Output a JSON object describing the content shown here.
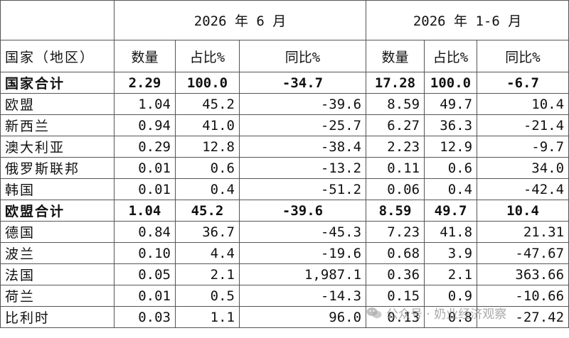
{
  "header": {
    "period_month": "2026 年 6 月",
    "period_ytd": "2026 年 1-6 月",
    "col_region": "国家（地区）",
    "col_qty": "数量",
    "col_share": "占比%",
    "col_yoy": "同比%"
  },
  "rows": [
    {
      "name": "国家合计",
      "qty": "2.29",
      "share": "100.0",
      "yoy": "-34.7",
      "ytd_qty": "17.28",
      "ytd_share": "100.0",
      "ytd_yoy": "-6.7"
    },
    {
      "name": "欧盟",
      "qty": "1.04",
      "share": "45.2",
      "yoy": "-39.6",
      "ytd_qty": "8.59",
      "ytd_share": "49.7",
      "ytd_yoy": "10.4"
    },
    {
      "name": "新西兰",
      "qty": "0.94",
      "share": "41.0",
      "yoy": "-25.7",
      "ytd_qty": "6.27",
      "ytd_share": "36.3",
      "ytd_yoy": "-21.4"
    },
    {
      "name": "澳大利亚",
      "qty": "0.29",
      "share": "12.8",
      "yoy": "-38.4",
      "ytd_qty": "2.23",
      "ytd_share": "12.9",
      "ytd_yoy": "-9.7"
    },
    {
      "name": "俄罗斯联邦",
      "qty": "0.01",
      "share": "0.6",
      "yoy": "-13.2",
      "ytd_qty": "0.11",
      "ytd_share": "0.6",
      "ytd_yoy": "34.0"
    },
    {
      "name": "韩国",
      "qty": "0.01",
      "share": "0.4",
      "yoy": "-51.2",
      "ytd_qty": "0.06",
      "ytd_share": "0.4",
      "ytd_yoy": "-42.4"
    },
    {
      "name": "欧盟合计",
      "qty": "1.04",
      "share": "45.2",
      "yoy": "-39.6",
      "ytd_qty": "8.59",
      "ytd_share": "49.7",
      "ytd_yoy": "10.4"
    },
    {
      "name": "德国",
      "qty": "0.84",
      "share": "36.7",
      "yoy": "-45.3",
      "ytd_qty": "7.23",
      "ytd_share": "41.8",
      "ytd_yoy": "21.31"
    },
    {
      "name": "波兰",
      "qty": "0.10",
      "share": "4.4",
      "yoy": "-19.6",
      "ytd_qty": "0.68",
      "ytd_share": "3.9",
      "ytd_yoy": "-47.67"
    },
    {
      "name": "法国",
      "qty": "0.05",
      "share": "2.1",
      "yoy": "1,987.1",
      "ytd_qty": "0.36",
      "ytd_share": "2.1",
      "ytd_yoy": "363.66"
    },
    {
      "name": "荷兰",
      "qty": "0.01",
      "share": "0.5",
      "yoy": "-14.3",
      "ytd_qty": "0.15",
      "ytd_share": "0.9",
      "ytd_yoy": "-10.66"
    },
    {
      "name": "比利时",
      "qty": "0.03",
      "share": "1.1",
      "yoy": "96.0",
      "ytd_qty": "0.13",
      "ytd_share": "0.8",
      "ytd_yoy": "-27.42"
    }
  ],
  "watermark": {
    "text": "公众号 · 奶业经济观察",
    "icon": "wechat-logo-icon"
  },
  "colors": {
    "border": "#555555",
    "text": "#111111",
    "background": "#ffffff"
  }
}
